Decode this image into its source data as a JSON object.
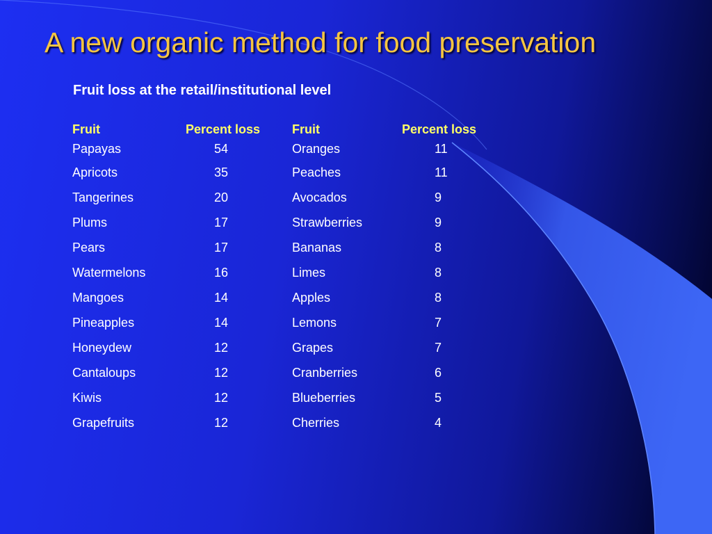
{
  "slide": {
    "title": "A new organic method for food preservation",
    "subtitle": "Fruit loss at the retail/institutional level"
  },
  "table": {
    "headers": [
      "Fruit",
      "Percent loss",
      "Fruit",
      "Percent loss"
    ],
    "rows": [
      {
        "fruit1": "Papayas",
        "loss1": "54",
        "fruit2": "Oranges",
        "loss2": "11"
      },
      {
        "fruit1": "Apricots",
        "loss1": "35",
        "fruit2": "Peaches",
        "loss2": "11"
      },
      {
        "fruit1": "Tangerines",
        "loss1": "20",
        "fruit2": "Avocados",
        "loss2": "9"
      },
      {
        "fruit1": "Plums",
        "loss1": "17",
        "fruit2": "Strawberries",
        "loss2": "9"
      },
      {
        "fruit1": "Pears",
        "loss1": "17",
        "fruit2": "Bananas",
        "loss2": "8"
      },
      {
        "fruit1": "Watermelons",
        "loss1": "16",
        "fruit2": "Limes",
        "loss2": "8"
      },
      {
        "fruit1": "Mangoes",
        "loss1": "14",
        "fruit2": "Apples",
        "loss2": "8"
      },
      {
        "fruit1": "Pineapples",
        "loss1": "14",
        "fruit2": "Lemons",
        "loss2": "7"
      },
      {
        "fruit1": "Honeydew",
        "loss1": "12",
        "fruit2": "Grapes",
        "loss2": "7"
      },
      {
        "fruit1": "Cantaloups",
        "loss1": "12",
        "fruit2": "Cranberries",
        "loss2": "6"
      },
      {
        "fruit1": "Kiwis",
        "loss1": "12",
        "fruit2": "Blueberries",
        "loss2": "5"
      },
      {
        "fruit1": "Grapefruits",
        "loss1": "12",
        "fruit2": "Cherries",
        "loss2": "4"
      }
    ]
  },
  "colors": {
    "title": "#f5c542",
    "header": "#ffff66",
    "body_text": "#ffffff",
    "swoosh": "#3a5fef"
  }
}
